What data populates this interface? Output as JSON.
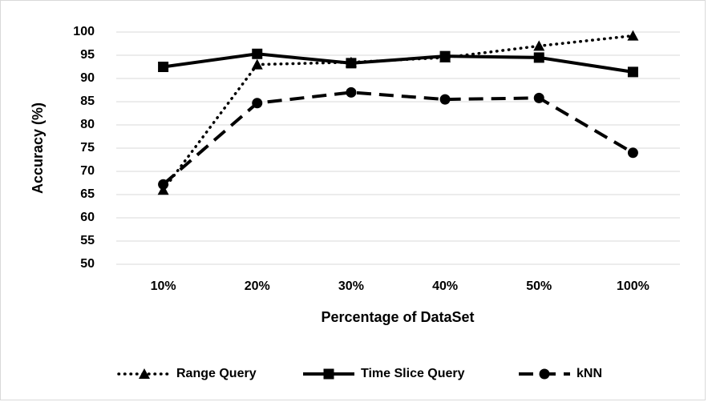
{
  "chart_data": {
    "type": "line",
    "y_label": "Accuracy (%)",
    "x_label": "Percentage of DataSet",
    "categories": [
      "10%",
      "20%",
      "30%",
      "40%",
      "50%",
      "100%"
    ],
    "series": [
      {
        "name": "Range Query",
        "color": "#000000",
        "line_style": "dotted",
        "marker": "triangle",
        "values": [
          66,
          93,
          93.5,
          94.5,
          97,
          99.2
        ]
      },
      {
        "name": "Time Slice Query",
        "color": "#000000",
        "line_style": "solid",
        "marker": "square",
        "values": [
          92.5,
          95.3,
          93.3,
          94.8,
          94.5,
          91.4
        ]
      },
      {
        "name": "kNN",
        "color": "#000000",
        "line_style": "dashed",
        "marker": "circle",
        "values": [
          67.2,
          84.7,
          87,
          85.5,
          85.8,
          74
        ]
      }
    ],
    "ylim": [
      50,
      100
    ],
    "yticks": [
      50,
      55,
      60,
      65,
      70,
      75,
      80,
      85,
      90,
      95,
      100
    ],
    "grid": true,
    "legend": "bottom"
  }
}
